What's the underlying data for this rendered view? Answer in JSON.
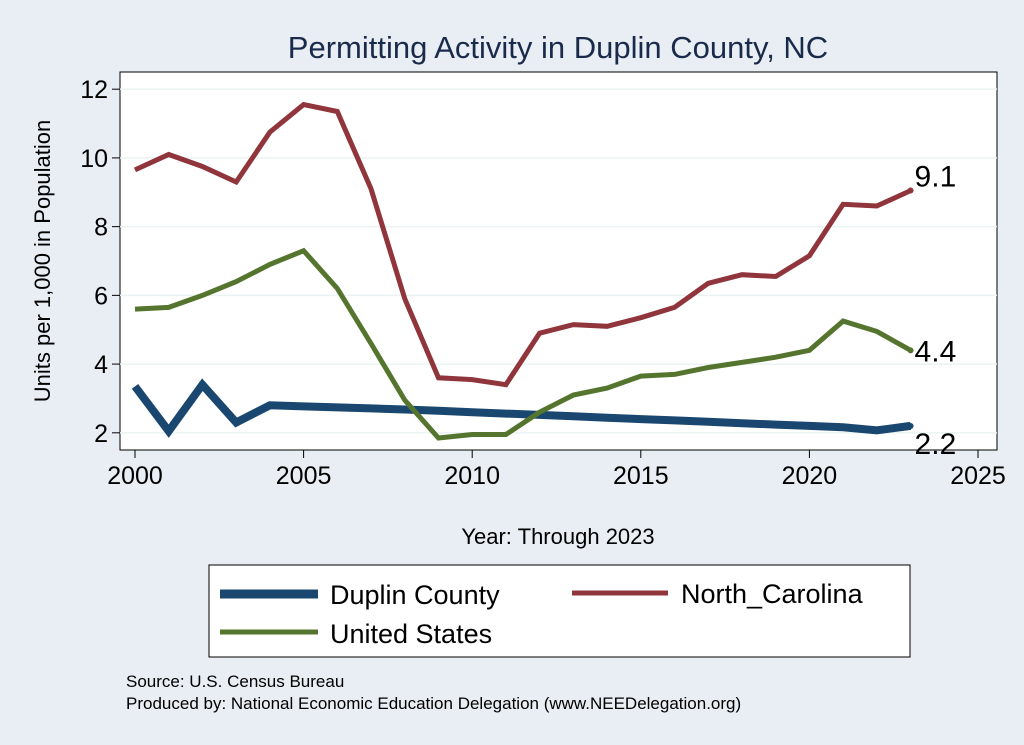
{
  "chart_data": {
    "type": "line",
    "title": "Permitting Activity in Duplin County, NC",
    "xlabel": "Year: Through 2023",
    "ylabel": "Units per 1,000 in Population",
    "xlim": [
      2000,
      2025
    ],
    "ylim": [
      1.5,
      12.5
    ],
    "xticks": [
      2000,
      2005,
      2010,
      2015,
      2020,
      2025
    ],
    "yticks": [
      2,
      4,
      6,
      8,
      10,
      12
    ],
    "x": [
      2000,
      2001,
      2002,
      2003,
      2004,
      2005,
      2006,
      2007,
      2008,
      2009,
      2010,
      2011,
      2012,
      2013,
      2014,
      2015,
      2016,
      2017,
      2018,
      2019,
      2020,
      2021,
      2022,
      2023
    ],
    "series": [
      {
        "name": "Duplin County",
        "color": "#1a476f",
        "values": [
          3.35,
          2.05,
          3.4,
          2.3,
          2.8,
          2.77,
          2.74,
          2.71,
          2.68,
          2.64,
          2.6,
          2.56,
          2.52,
          2.48,
          2.44,
          2.4,
          2.36,
          2.32,
          2.28,
          2.24,
          2.2,
          2.16,
          2.07,
          2.2
        ],
        "end_label": "2.2"
      },
      {
        "name": "North_Carolina",
        "color": "#90353b",
        "values": [
          9.65,
          10.1,
          9.75,
          9.3,
          10.75,
          11.55,
          11.35,
          9.1,
          5.9,
          3.6,
          3.55,
          3.4,
          4.9,
          5.15,
          5.1,
          5.35,
          5.65,
          6.35,
          6.6,
          6.55,
          7.15,
          8.65,
          8.6,
          9.05
        ],
        "end_label": "9.1"
      },
      {
        "name": "United States",
        "color": "#55752f",
        "values": [
          5.6,
          5.65,
          6.0,
          6.4,
          6.9,
          7.3,
          6.2,
          4.6,
          2.95,
          1.85,
          1.95,
          1.95,
          2.6,
          3.1,
          3.3,
          3.65,
          3.7,
          3.9,
          4.05,
          4.2,
          4.4,
          5.25,
          4.95,
          4.4
        ],
        "end_label": "4.4"
      }
    ],
    "legend": {
      "placement": "bottom",
      "entries": [
        "Duplin County",
        "North_Carolina",
        "United States"
      ]
    },
    "grid": true,
    "notes": [
      "Source: U.S. Census Bureau",
      "Produced by: National Economic Education Delegation (www.NEEDelegation.org)"
    ]
  },
  "colors": {
    "background": "#e9eef4",
    "plot_background": "#ffffff",
    "title": "#1a2a4a"
  }
}
